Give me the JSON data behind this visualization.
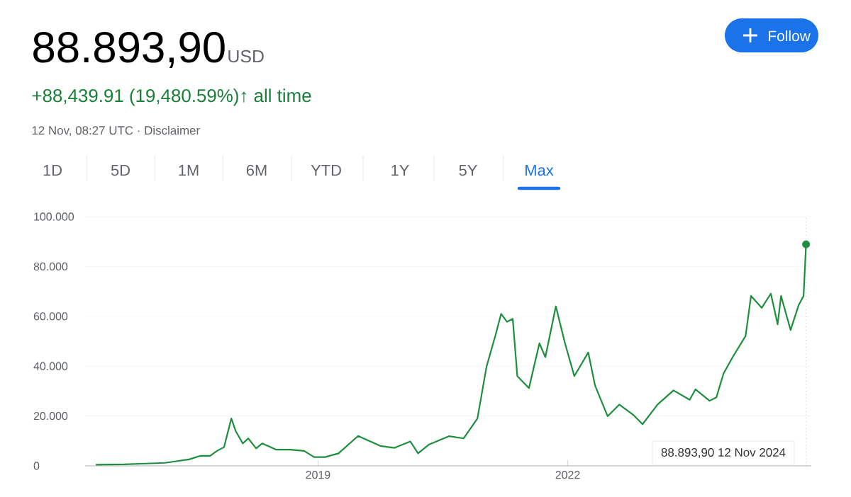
{
  "chart_data": {
    "type": "line",
    "title": "88.893,90",
    "annotations": [
      "USD",
      "+88,439.91 (19,480.59%)↑ all time",
      "12 Nov, 08:27 UTC · Disclaimer",
      "Follow",
      "1D",
      "5D",
      "1M",
      "6M",
      "YTD",
      "1Y",
      "5Y",
      "Max",
      "88.893,90  12 Nov 2024"
    ],
    "series": [
      {
        "color": "#1e8e3e",
        "marker": "none",
        "x": [
          "2016-05-01",
          "2016-09-01",
          "2017-01-01",
          "2017-03-01",
          "2017-05-01",
          "2017-06-15",
          "2017-08-01",
          "2017-09-15",
          "2017-10-15",
          "2017-11-15",
          "2017-12-17",
          "2018-01-05",
          "2018-02-05",
          "2018-03-01",
          "2018-04-05",
          "2018-05-01",
          "2018-07-01",
          "2018-09-01",
          "2018-11-01",
          "2018-12-15",
          "2019-02-01",
          "2019-04-01",
          "2019-06-26",
          "2019-08-01",
          "2019-10-01",
          "2019-12-01",
          "2020-02-10",
          "2020-03-15",
          "2020-05-01",
          "2020-07-30",
          "2020-10-01",
          "2020-12-01",
          "2021-01-10",
          "2021-02-20",
          "2021-03-15",
          "2021-04-10",
          "2021-05-05",
          "2021-05-25",
          "2021-07-15",
          "2021-08-30",
          "2021-09-25",
          "2021-11-10",
          "2021-12-20",
          "2022-01-30",
          "2022-04-01",
          "2022-05-01",
          "2022-06-25",
          "2022-08-15",
          "2022-10-15",
          "2022-11-25",
          "2023-01-30",
          "2023-04-10",
          "2023-06-20",
          "2023-07-15",
          "2023-09-15",
          "2023-10-15",
          "2023-11-15",
          "2023-12-25",
          "2024-02-20",
          "2024-03-15",
          "2024-05-01",
          "2024-06-10",
          "2024-07-10",
          "2024-07-25",
          "2024-09-05",
          "2024-10-10",
          "2024-11-01",
          "2024-11-12"
        ],
        "values": [
          450,
          600,
          1000,
          1200,
          2000,
          2600,
          4000,
          4000,
          6000,
          7500,
          19000,
          14000,
          9000,
          11000,
          7000,
          9000,
          6500,
          6500,
          6000,
          3500,
          3500,
          5000,
          12000,
          10500,
          8000,
          7200,
          9800,
          5000,
          8500,
          11900,
          11000,
          19000,
          39800,
          53000,
          61000,
          57800,
          59000,
          36000,
          31200,
          49200,
          43600,
          64000,
          49200,
          36000,
          45500,
          32200,
          19900,
          24600,
          20500,
          16700,
          24600,
          30300,
          26500,
          30700,
          26100,
          27500,
          37000,
          43600,
          52100,
          68200,
          63400,
          69100,
          56800,
          68200,
          54500,
          64400,
          68200,
          88893.9
        ]
      },
      {
        "type": "scatter",
        "color": "#1e8e3e",
        "marker": "circle",
        "x": [
          "2024-11-12"
        ],
        "values": [
          88893.9
        ]
      }
    ],
    "xlim": [
      "2016-03-15",
      "2024-12-05"
    ],
    "xticks": [
      {
        "value": "2019-01-01",
        "label": "2019"
      },
      {
        "value": "2022-01-01",
        "label": "2022"
      }
    ],
    "ylim": [
      0,
      100000
    ],
    "yticks": [
      {
        "value": 0,
        "label": "0"
      },
      {
        "value": 20000,
        "label": "20.000"
      },
      {
        "value": 40000,
        "label": "40.000"
      },
      {
        "value": 60000,
        "label": "60.000"
      },
      {
        "value": 80000,
        "label": "80.000"
      },
      {
        "value": 100000,
        "label": "100.000"
      }
    ],
    "grid": "y",
    "ref_lines": [
      {
        "axis": "x",
        "value": "2024-11-12",
        "color": "#9aa0a6",
        "line_style": "dotted"
      }
    ]
  }
}
